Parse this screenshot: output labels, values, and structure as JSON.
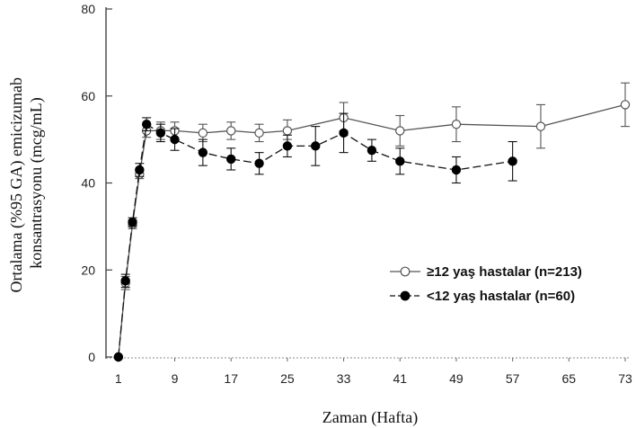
{
  "chart_data": {
    "type": "line",
    "xlabel": "Zaman (Hafta)",
    "ylabel_lines": [
      "Ortalama (%95 GA) emicizumab",
      "konsantrasyonu (mcg/mL)"
    ],
    "xlim": [
      0,
      73
    ],
    "ylim": [
      0,
      80
    ],
    "x_ticks": [
      1,
      9,
      17,
      25,
      33,
      41,
      49,
      57,
      65,
      73
    ],
    "y_ticks": [
      0,
      20,
      40,
      60,
      80
    ],
    "grid": false,
    "legend_position": "lower-right",
    "series": [
      {
        "name": "≥12 yaş hastalar (n=213)",
        "marker": "open-circle",
        "line_style": "solid",
        "color": "#555555",
        "points": [
          {
            "x": 1,
            "y": 0,
            "lo": 0,
            "hi": 0
          },
          {
            "x": 2,
            "y": 17,
            "lo": 15.5,
            "hi": 18.5
          },
          {
            "x": 3,
            "y": 30.5,
            "lo": 29.5,
            "hi": 31.5
          },
          {
            "x": 4,
            "y": 42,
            "lo": 41,
            "hi": 43
          },
          {
            "x": 5,
            "y": 52,
            "lo": 50.5,
            "hi": 53.5
          },
          {
            "x": 7,
            "y": 52,
            "lo": 50,
            "hi": 54
          },
          {
            "x": 9,
            "y": 52,
            "lo": 50,
            "hi": 54
          },
          {
            "x": 13,
            "y": 51.5,
            "lo": 49.5,
            "hi": 53.5
          },
          {
            "x": 17,
            "y": 52,
            "lo": 50,
            "hi": 54
          },
          {
            "x": 21,
            "y": 51.5,
            "lo": 49.5,
            "hi": 53.5
          },
          {
            "x": 25,
            "y": 52,
            "lo": 50,
            "hi": 54.5
          },
          {
            "x": 33,
            "y": 55,
            "lo": 52,
            "hi": 58.5
          },
          {
            "x": 41,
            "y": 52,
            "lo": 48.5,
            "hi": 55.5
          },
          {
            "x": 49,
            "y": 53.5,
            "lo": 49.5,
            "hi": 57.5
          },
          {
            "x": 61,
            "y": 53,
            "lo": 48,
            "hi": 58
          },
          {
            "x": 73,
            "y": 58,
            "lo": 53,
            "hi": 63
          }
        ]
      },
      {
        "name": "<12 yaş hastalar (n=60)",
        "marker": "filled-circle",
        "line_style": "dashed",
        "color": "#111111",
        "points": [
          {
            "x": 1,
            "y": 0,
            "lo": 0,
            "hi": 0
          },
          {
            "x": 2,
            "y": 17.5,
            "lo": 16,
            "hi": 19
          },
          {
            "x": 3,
            "y": 31,
            "lo": 30,
            "hi": 32
          },
          {
            "x": 4,
            "y": 43,
            "lo": 41.5,
            "hi": 44.5
          },
          {
            "x": 5,
            "y": 53.5,
            "lo": 52,
            "hi": 55
          },
          {
            "x": 7,
            "y": 51.5,
            "lo": 49.5,
            "hi": 53.5
          },
          {
            "x": 9,
            "y": 50,
            "lo": 47.5,
            "hi": 52.5
          },
          {
            "x": 13,
            "y": 47,
            "lo": 44,
            "hi": 50
          },
          {
            "x": 17,
            "y": 45.5,
            "lo": 43,
            "hi": 48
          },
          {
            "x": 21,
            "y": 44.5,
            "lo": 42,
            "hi": 47
          },
          {
            "x": 25,
            "y": 48.5,
            "lo": 46,
            "hi": 51
          },
          {
            "x": 29,
            "y": 48.5,
            "lo": 44,
            "hi": 53
          },
          {
            "x": 33,
            "y": 51.5,
            "lo": 47,
            "hi": 56
          },
          {
            "x": 37,
            "y": 47.5,
            "lo": 45,
            "hi": 50
          },
          {
            "x": 41,
            "y": 45,
            "lo": 42,
            "hi": 48
          },
          {
            "x": 49,
            "y": 43,
            "lo": 40,
            "hi": 46
          },
          {
            "x": 57,
            "y": 45,
            "lo": 40.5,
            "hi": 49.5
          }
        ]
      }
    ]
  }
}
